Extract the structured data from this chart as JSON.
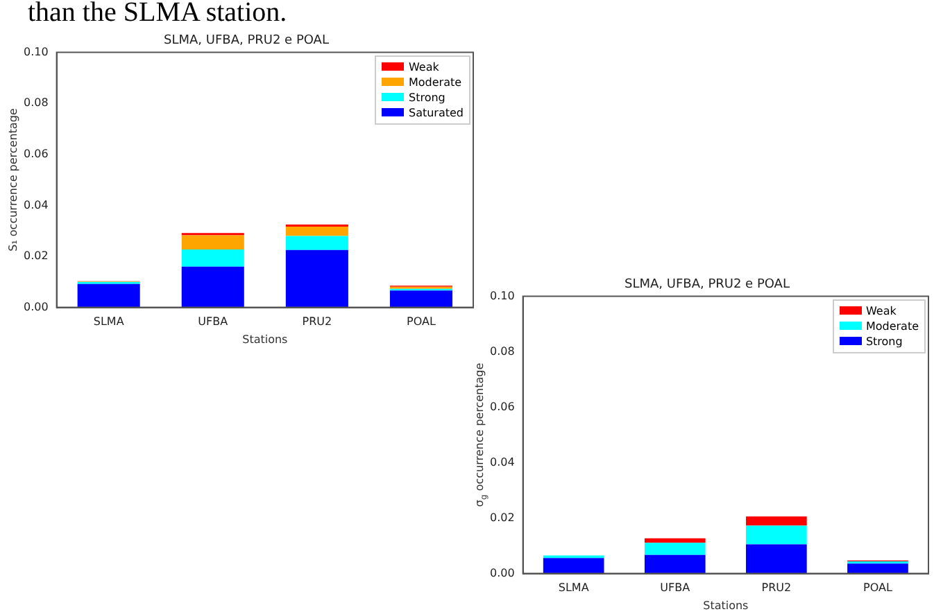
{
  "chart_data": [
    {
      "type": "bar",
      "stacked": true,
      "title": "SLMA, UFBA, PRU2 e POAL",
      "xlabel": "Stations",
      "ylabel": "S₁ occurrence percentage",
      "annotations": [
        "than the SLMA station."
      ],
      "categories": [
        "SLMA",
        "UFBA",
        "PRU2",
        "POAL"
      ],
      "ylim": [
        0,
        0.1
      ],
      "yticks": [
        {
          "value": 0,
          "label": "0.00"
        },
        {
          "value": 0.02,
          "label": "0.02"
        },
        {
          "value": 0.04,
          "label": "0.04"
        },
        {
          "value": 0.06,
          "label": "0.06"
        },
        {
          "value": 0.08,
          "label": "0.08"
        },
        {
          "value": 0.1,
          "label": "0.10"
        }
      ],
      "legend": "top right",
      "grid": false,
      "series": [
        {
          "name": "Saturated",
          "color": "#0000ff",
          "values": [
            0.0092,
            0.016,
            0.0225,
            0.0066
          ]
        },
        {
          "name": "Strong",
          "color": "#00ffff",
          "values": [
            0.0008,
            0.0067,
            0.0055,
            0.0007
          ]
        },
        {
          "name": "Moderate",
          "color": "#ffa500",
          "values": [
            0.0002,
            0.0056,
            0.0037,
            0.0008
          ]
        },
        {
          "name": "Weak",
          "color": "#ff0000",
          "values": [
            0.0001,
            0.0009,
            0.0008,
            0.0004
          ]
        }
      ]
    },
    {
      "type": "bar",
      "stacked": true,
      "title": "SLMA, UFBA, PRU2 e POAL",
      "xlabel": "Stations",
      "ylabel": "σ$_{g}$ occurrence percentage",
      "categories": [
        "SLMA",
        "UFBA",
        "PRU2",
        "POAL"
      ],
      "ylim": [
        0,
        0.1
      ],
      "yticks": [
        {
          "value": 0,
          "label": "0.00"
        },
        {
          "value": 0.02,
          "label": "0.02"
        },
        {
          "value": 0.04,
          "label": "0.04"
        },
        {
          "value": 0.06,
          "label": "0.06"
        },
        {
          "value": 0.08,
          "label": "0.08"
        },
        {
          "value": 0.1,
          "label": "0.10"
        }
      ],
      "legend": "top right",
      "grid": false,
      "series": [
        {
          "name": "Strong",
          "color": "#0000ff",
          "values": [
            0.0056,
            0.0067,
            0.0105,
            0.0036
          ]
        },
        {
          "name": "Moderate",
          "color": "#00ffff",
          "values": [
            0.0009,
            0.0044,
            0.0068,
            0.0008
          ]
        },
        {
          "name": "Weak",
          "color": "#ff0000",
          "values": [
            null,
            0.0016,
            0.0033,
            0.0003
          ]
        }
      ]
    }
  ]
}
